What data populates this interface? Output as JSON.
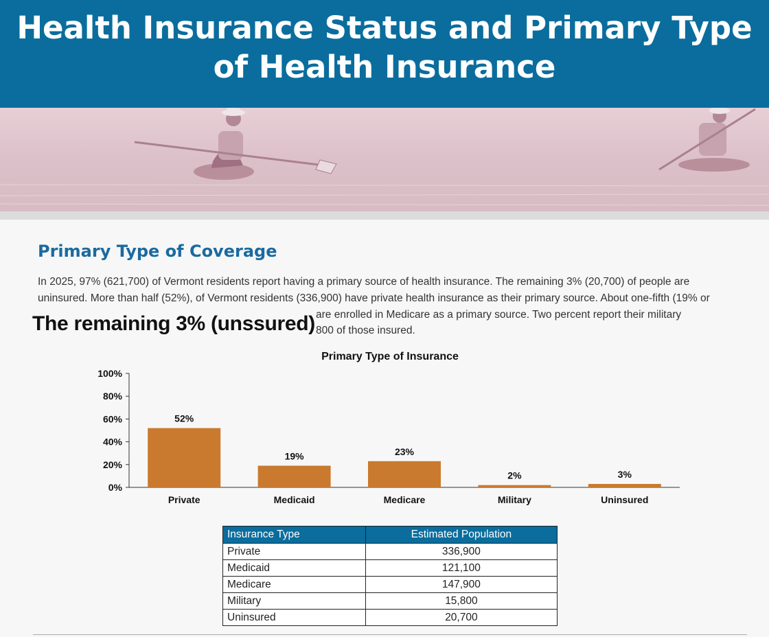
{
  "page": {
    "title": "Health Insurance Status and Primary Type of Health Insurance",
    "section_title": "Primary Type of Coverage",
    "paragraph_lines": [
      "In 2025, 97% (621,700) of Vermont residents report having a primary source of health insurance. The remaining 3% (20,700) of people are",
      "uninsured. More than half (52%), of Vermont residents (336,900) have private health insurance as their primary source. About one-fifth (19% or",
      "are enrolled in Medicare as a primary source. Two percent report their military",
      "800 of those insured."
    ],
    "callout": "The remaining 3% (unssured)"
  },
  "colors": {
    "banner": "#0a6d9d",
    "bar": "#c97a2e",
    "heading": "#1a6aa0"
  },
  "chart_data": {
    "type": "bar",
    "title": "Primary Type of Insurance",
    "categories": [
      "Private",
      "Medicaid",
      "Medicare",
      "Military",
      "Uninsured"
    ],
    "values": [
      52,
      19,
      23,
      2,
      3
    ],
    "value_labels": [
      "52%",
      "19%",
      "23%",
      "2%",
      "3%"
    ],
    "ylim": [
      0,
      100
    ],
    "yticks": [
      "0%",
      "20%",
      "40%",
      "60%",
      "80%",
      "100%"
    ],
    "xlabel": "",
    "ylabel": ""
  },
  "table": {
    "headers": [
      "Insurance Type",
      "Estimated Population"
    ],
    "rows": [
      [
        "Private",
        "336,900"
      ],
      [
        "Medicaid",
        "121,100"
      ],
      [
        "Medicare",
        "147,900"
      ],
      [
        "Military",
        "15,800"
      ],
      [
        "Uninsured",
        "20,700"
      ]
    ]
  }
}
